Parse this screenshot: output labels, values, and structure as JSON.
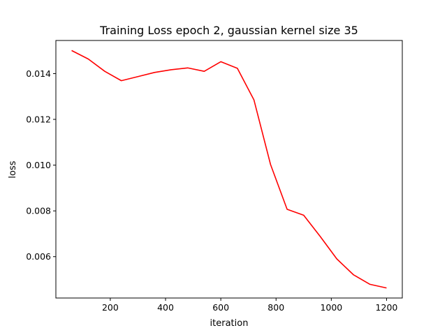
{
  "chart_data": {
    "type": "line",
    "title": "Training Loss epoch 2, gaussian kernel size 35",
    "xlabel": "iteration",
    "ylabel": "loss",
    "xlim": [
      3,
      1257
    ],
    "ylim": [
      0.004192,
      0.015448
    ],
    "xticks": [
      200,
      400,
      600,
      800,
      1000,
      1200
    ],
    "xtick_labels": [
      "200",
      "400",
      "600",
      "800",
      "1000",
      "1200"
    ],
    "yticks": [
      0.006,
      0.008,
      0.01,
      0.012,
      0.014
    ],
    "ytick_labels": [
      "0.006",
      "0.008",
      "0.010",
      "0.012",
      "0.014"
    ],
    "grid": false,
    "series": [
      {
        "color": "#ff0000",
        "x": [
          60,
          120,
          180,
          240,
          300,
          360,
          420,
          480,
          540,
          600,
          660,
          720,
          780,
          840,
          900,
          960,
          1020,
          1080,
          1140,
          1200
        ],
        "y": [
          0.01501,
          0.01464,
          0.0141,
          0.01369,
          0.01387,
          0.01405,
          0.01417,
          0.01425,
          0.0141,
          0.01452,
          0.01423,
          0.01285,
          0.01003,
          0.00807,
          0.00781,
          0.00688,
          0.0059,
          0.00521,
          0.00479,
          0.00463
        ]
      }
    ]
  }
}
